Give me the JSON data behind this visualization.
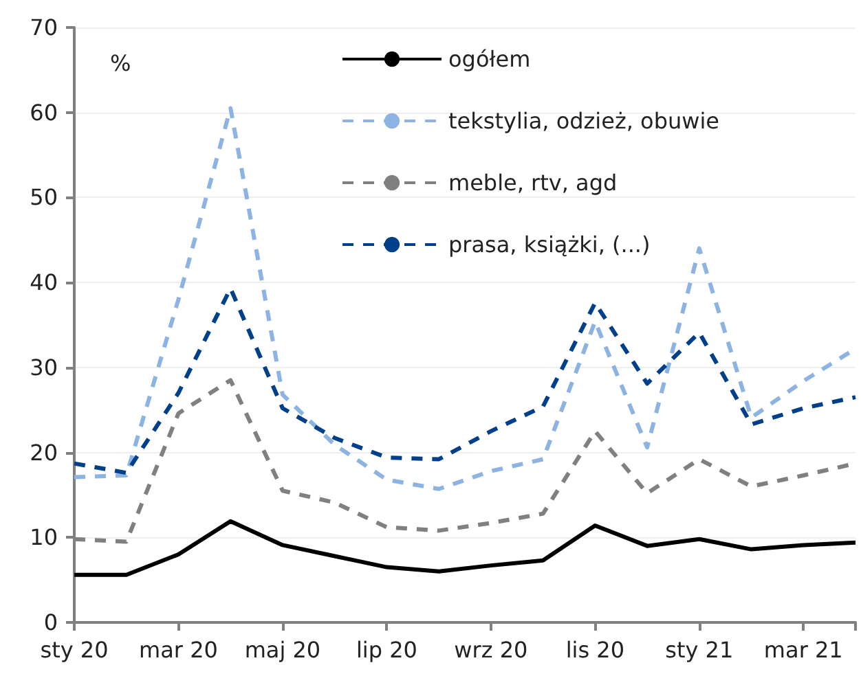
{
  "chart_data": {
    "type": "line",
    "ylabel": "%",
    "categories": [
      "sty 20",
      null,
      "mar 20",
      null,
      "maj 20",
      null,
      "lip 20",
      null,
      "wrz 20",
      null,
      "lis 20",
      null,
      "sty 21",
      null,
      "mar 21",
      null
    ],
    "series": [
      {
        "name": "ogółem",
        "color": "#000000",
        "line_style": "solid",
        "values": [
          5.6,
          5.6,
          8.0,
          11.9,
          9.1,
          7.8,
          6.5,
          6.0,
          6.7,
          7.3,
          11.4,
          9.0,
          9.8,
          8.6,
          9.1,
          9.4
        ]
      },
      {
        "name": "tekstylia, odzież, obuwie",
        "color": "#8db3e2",
        "line_style": "dashed",
        "values": [
          17.1,
          17.3,
          38,
          60.5,
          26.8,
          20.9,
          16.8,
          15.7,
          17.8,
          19.2,
          35.4,
          20.6,
          44.0,
          24.1,
          28.4,
          32.2
        ]
      },
      {
        "name": "meble, rtv, agd",
        "color": "#808080",
        "line_style": "dashed",
        "values": [
          9.8,
          9.5,
          24.6,
          28.5,
          15.5,
          14.1,
          11.2,
          10.8,
          11.7,
          12.8,
          22.5,
          15.2,
          19.2,
          16.0,
          17.3,
          18.7
        ]
      },
      {
        "name": "prasa, książki, (...)",
        "color": "#003f8a",
        "line_style": "dashed",
        "values": [
          18.7,
          17.6,
          27,
          39.3,
          25.2,
          21.7,
          19.4,
          19.2,
          22.5,
          25.4,
          37.6,
          28.1,
          34.1,
          23.3,
          25.2,
          26.5
        ]
      }
    ],
    "ylim": [
      0,
      70
    ],
    "yticks": [
      0,
      10,
      20,
      30,
      40,
      50,
      60,
      70
    ],
    "grid": "y",
    "legend": "top",
    "marker": "none"
  }
}
